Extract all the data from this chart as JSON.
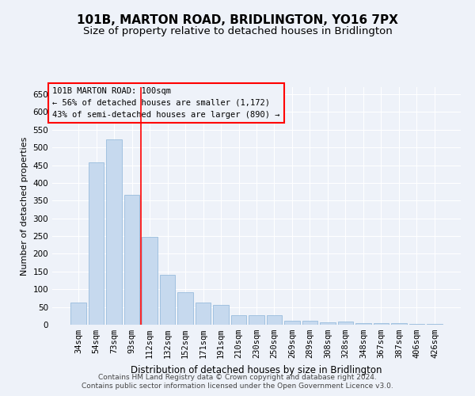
{
  "title": "101B, MARTON ROAD, BRIDLINGTON, YO16 7PX",
  "subtitle": "Size of property relative to detached houses in Bridlington",
  "xlabel": "Distribution of detached houses by size in Bridlington",
  "ylabel": "Number of detached properties",
  "categories": [
    "34sqm",
    "54sqm",
    "73sqm",
    "93sqm",
    "112sqm",
    "132sqm",
    "152sqm",
    "171sqm",
    "191sqm",
    "210sqm",
    "230sqm",
    "250sqm",
    "269sqm",
    "289sqm",
    "308sqm",
    "328sqm",
    "348sqm",
    "367sqm",
    "387sqm",
    "406sqm",
    "426sqm"
  ],
  "values": [
    62,
    458,
    522,
    367,
    248,
    140,
    91,
    62,
    55,
    27,
    27,
    27,
    12,
    12,
    7,
    9,
    5,
    4,
    4,
    3,
    3
  ],
  "bar_color": "#c6d9ee",
  "bar_edge_color": "#8ab4d8",
  "red_line_x": 3.5,
  "annotation_lines": [
    "101B MARTON ROAD: 100sqm",
    "← 56% of detached houses are smaller (1,172)",
    "43% of semi-detached houses are larger (890) →"
  ],
  "ylim": [
    0,
    670
  ],
  "yticks": [
    0,
    50,
    100,
    150,
    200,
    250,
    300,
    350,
    400,
    450,
    500,
    550,
    600,
    650
  ],
  "footer1": "Contains HM Land Registry data © Crown copyright and database right 2024.",
  "footer2": "Contains public sector information licensed under the Open Government Licence v3.0.",
  "background_color": "#eef2f9",
  "grid_color": "#ffffff",
  "title_fontsize": 11,
  "subtitle_fontsize": 9.5,
  "xlabel_fontsize": 8.5,
  "ylabel_fontsize": 8,
  "tick_fontsize": 7.5,
  "annotation_fontsize": 7.5,
  "footer_fontsize": 6.5
}
